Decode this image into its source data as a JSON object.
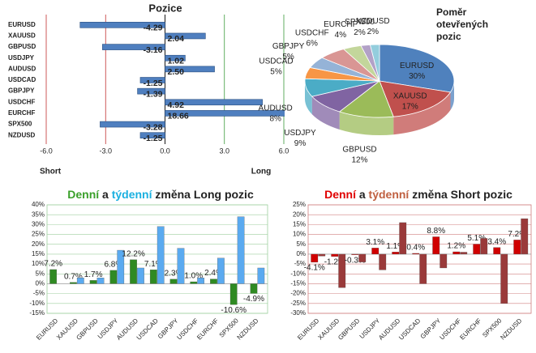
{
  "chart_data": [
    {
      "type": "hbar",
      "title": "Pozice",
      "categories": [
        "EURUSD",
        "XAUUSD",
        "GBPUSD",
        "USDJPY",
        "AUDUSD",
        "USDCAD",
        "GBPJPY",
        "USDCHF",
        "EURCHF",
        "SPX500",
        "NZDUSD"
      ],
      "values": [
        -4.29,
        2.04,
        -3.16,
        1.02,
        2.5,
        -1.25,
        -1.39,
        4.92,
        18.66,
        -3.28,
        -1.25
      ],
      "value_labels": [
        "-4.29",
        "2.04",
        "-3.16",
        "1.02",
        "2.50",
        "-1.25",
        "-1.39",
        "4.92",
        "18.66",
        "-3.28",
        "-1.25"
      ],
      "color": "#4f7fbf",
      "xlim": [
        -6,
        6
      ],
      "xticks": [
        {
          "value": -6,
          "label": "-6.0"
        },
        {
          "value": -3,
          "label": "-3.0"
        },
        {
          "value": 0,
          "label": "0.0"
        },
        {
          "value": 3,
          "label": "3.0"
        },
        {
          "value": 6,
          "label": "6.0"
        }
      ],
      "axis_labels": {
        "negative": "Short",
        "positive": "Long"
      }
    },
    {
      "type": "pie",
      "title": "Poměr otevřených pozic",
      "categories": [
        "EURUSD",
        "XAUUSD",
        "GBPUSD",
        "USDJPY",
        "AUDUSD",
        "USDCAD",
        "GBPJPY",
        "USDCHF",
        "EURCHF",
        "SPX500",
        "NZDUSD"
      ],
      "values": [
        30,
        17,
        12,
        9,
        8,
        5,
        5,
        6,
        4,
        2,
        2
      ],
      "value_labels": [
        "30%",
        "17%",
        "12%",
        "9%",
        "8%",
        "5%",
        "5%",
        "6%",
        "4%",
        "2%",
        "2%"
      ],
      "colors": [
        "#4f81bd",
        "#c0504d",
        "#9bbb59",
        "#8064a2",
        "#4bacc6",
        "#f79646",
        "#95b3d7",
        "#d99694",
        "#c3d69b",
        "#b2a1c7",
        "#93cddd"
      ]
    },
    {
      "type": "bar",
      "title": [
        "Denní",
        "a",
        "týdenní",
        "změna Long pozic"
      ],
      "categories": [
        "EURUSD",
        "XAUUSD",
        "GBPUSD",
        "USDJPY",
        "AUDUSD",
        "USDCAD",
        "GBPJPY",
        "USDCHF",
        "EURCHF",
        "SPX500",
        "NZDUSD"
      ],
      "series": [
        {
          "color": "#2f8a22",
          "values": [
            7.2,
            0.7,
            1.7,
            6.8,
            12.2,
            7.1,
            2.3,
            1.0,
            2.4,
            -10.6,
            -4.9
          ],
          "value_labels": [
            "7.2%",
            "0.7%",
            "1.7%",
            "6.8%",
            "12.2%",
            "7.1%",
            "2.3%",
            "1.0%",
            "2.4%",
            "-10.6%",
            "-4.9%"
          ]
        },
        {
          "color": "#5aaaf0",
          "values": [
            0,
            3,
            3,
            17,
            8,
            29,
            18,
            3,
            13,
            34,
            8
          ]
        }
      ],
      "title_colors": [
        "#3aa02a",
        "#222222",
        "#1ab0e0",
        "#222222"
      ],
      "grid_color": "#9fcf9f",
      "ylim": [
        -15,
        40
      ],
      "yticks": [
        {
          "value": -15,
          "label": "-15%"
        },
        {
          "value": -10,
          "label": "-10%"
        },
        {
          "value": -5,
          "label": "-5%"
        },
        {
          "value": 0,
          "label": "0%"
        },
        {
          "value": 5,
          "label": "5%"
        },
        {
          "value": 10,
          "label": "10%"
        },
        {
          "value": 15,
          "label": "15%"
        },
        {
          "value": 20,
          "label": "20%"
        },
        {
          "value": 25,
          "label": "25%"
        },
        {
          "value": 30,
          "label": "30%"
        },
        {
          "value": 35,
          "label": "35%"
        },
        {
          "value": 40,
          "label": "40%"
        }
      ]
    },
    {
      "type": "bar",
      "title": [
        "Denní",
        "a",
        "týdenní",
        "změna Short pozic"
      ],
      "categories": [
        "EURUSD",
        "XAUUSD",
        "GBPUSD",
        "USDJPY",
        "AUDUSD",
        "USDCAD",
        "GBPJPY",
        "USDCHF",
        "EURCHF",
        "SPX500",
        "NZDUSD"
      ],
      "series": [
        {
          "color": "#d00000",
          "values": [
            -4.1,
            -1.2,
            -0.3,
            3.1,
            1.1,
            0.4,
            8.8,
            1.2,
            5.1,
            3.4,
            7.2
          ],
          "value_labels": [
            "-4.1%",
            "-1.2%",
            "-0.3%",
            "3.1%",
            "1.1%",
            "0.4%",
            "8.8%",
            "1.2%",
            "5.1%",
            "3.4%",
            "7.2%"
          ]
        },
        {
          "color": "#9a3a3a",
          "values": [
            -1,
            -17,
            -4,
            -8,
            16,
            -15,
            -7,
            1,
            8,
            -25,
            18
          ]
        }
      ],
      "title_colors": [
        "#e00000",
        "#222222",
        "#c06040",
        "#222222"
      ],
      "grid_color": "#d08080",
      "ylim": [
        -30,
        25
      ],
      "yticks": [
        {
          "value": -30,
          "label": "-30%"
        },
        {
          "value": -25,
          "label": "-25%"
        },
        {
          "value": -20,
          "label": "-20%"
        },
        {
          "value": -15,
          "label": "-15%"
        },
        {
          "value": -10,
          "label": "-10%"
        },
        {
          "value": -5,
          "label": "-5%"
        },
        {
          "value": 0,
          "label": "0%"
        },
        {
          "value": 5,
          "label": "5%"
        },
        {
          "value": 10,
          "label": "10%"
        },
        {
          "value": 15,
          "label": "15%"
        },
        {
          "value": 20,
          "label": "20%"
        },
        {
          "value": 25,
          "label": "25%"
        }
      ]
    }
  ]
}
